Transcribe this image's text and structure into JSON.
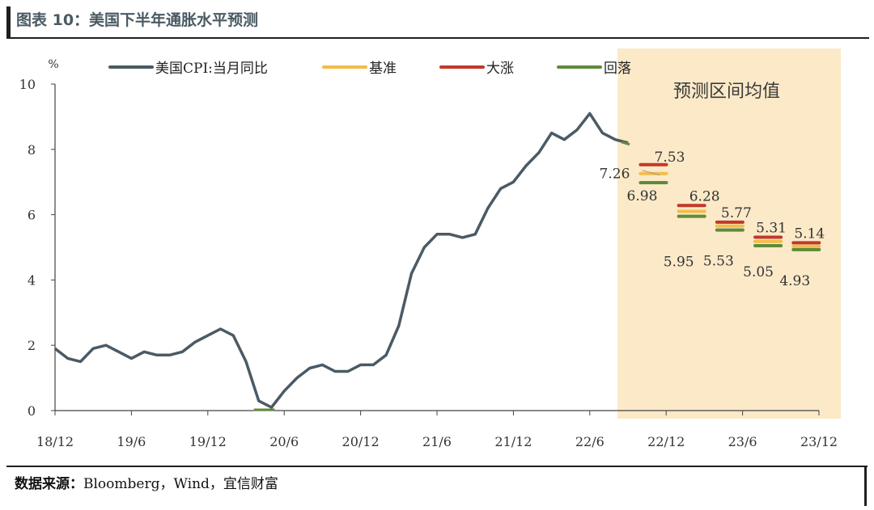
{
  "header": {
    "title": "图表 10：美国下半年通胀水平预测"
  },
  "footer": {
    "source_label": "数据来源：",
    "source_text": "Bloomberg，Wind，宜信财富"
  },
  "chart_data": {
    "type": "line",
    "title": "图表 10：美国下半年通胀水平预测",
    "ylabel": "%",
    "ylim": [
      0,
      10
    ],
    "yticks": [
      0,
      2,
      4,
      6,
      8,
      10
    ],
    "x_ticks": [
      "18/12",
      "19/6",
      "19/12",
      "20/6",
      "20/12",
      "21/6",
      "21/12",
      "22/6",
      "22/12",
      "23/6",
      "23/12"
    ],
    "x_range": [
      "2018-12",
      "2023-12"
    ],
    "legend_position": "top",
    "series": [
      {
        "name": "美国CPI:当月同比",
        "color": "#4b5a64",
        "x": [
          "2018-12",
          "2019-01",
          "2019-02",
          "2019-03",
          "2019-04",
          "2019-05",
          "2019-06",
          "2019-07",
          "2019-08",
          "2019-09",
          "2019-10",
          "2019-11",
          "2019-12",
          "2020-01",
          "2020-02",
          "2020-03",
          "2020-04",
          "2020-05",
          "2020-06",
          "2020-07",
          "2020-08",
          "2020-09",
          "2020-10",
          "2020-11",
          "2020-12",
          "2021-01",
          "2021-02",
          "2021-03",
          "2021-04",
          "2021-05",
          "2021-06",
          "2021-07",
          "2021-08",
          "2021-09",
          "2021-10",
          "2021-11",
          "2021-12",
          "2022-01",
          "2022-02",
          "2022-03",
          "2022-04",
          "2022-05",
          "2022-06",
          "2022-07",
          "2022-08",
          "2022-09"
        ],
        "values": [
          1.9,
          1.6,
          1.5,
          1.9,
          2.0,
          1.8,
          1.6,
          1.8,
          1.7,
          1.7,
          1.8,
          2.1,
          2.3,
          2.5,
          2.3,
          1.5,
          0.3,
          0.1,
          0.6,
          1.0,
          1.3,
          1.4,
          1.2,
          1.2,
          1.4,
          1.4,
          1.7,
          2.6,
          4.2,
          5.0,
          5.4,
          5.4,
          5.3,
          5.4,
          6.2,
          6.8,
          7.0,
          7.5,
          7.9,
          8.5,
          8.3,
          8.6,
          9.1,
          8.5,
          8.3,
          8.2
        ]
      }
    ],
    "forecast": {
      "label": "预测区间均值",
      "scenarios": [
        {
          "name": "基准",
          "color": "#f2bd4a"
        },
        {
          "name": "大涨",
          "color": "#c0392b"
        },
        {
          "name": "回落",
          "color": "#5f8a3a"
        }
      ],
      "points": [
        {
          "x": "2022-11",
          "大涨": 7.53,
          "基准": 7.26,
          "回落": 6.98,
          "labels": [
            "7.53",
            "7.26",
            "6.98"
          ]
        },
        {
          "x": "2023-02",
          "大涨": 6.28,
          "基准": 6.1,
          "回落": 5.95,
          "labels": [
            "6.28",
            "5.95"
          ]
        },
        {
          "x": "2023-05",
          "大涨": 5.77,
          "基准": 5.65,
          "回落": 5.53,
          "labels": [
            "5.77",
            "5.53"
          ]
        },
        {
          "x": "2023-08",
          "大涨": 5.31,
          "基准": 5.18,
          "回落": 5.05,
          "labels": [
            "5.31",
            "5.05"
          ]
        },
        {
          "x": "2023-11",
          "大涨": 5.14,
          "基准": 5.03,
          "回落": 4.93,
          "labels": [
            "5.14",
            "4.93"
          ]
        }
      ],
      "highlight_color": "#fbe9c8"
    }
  }
}
